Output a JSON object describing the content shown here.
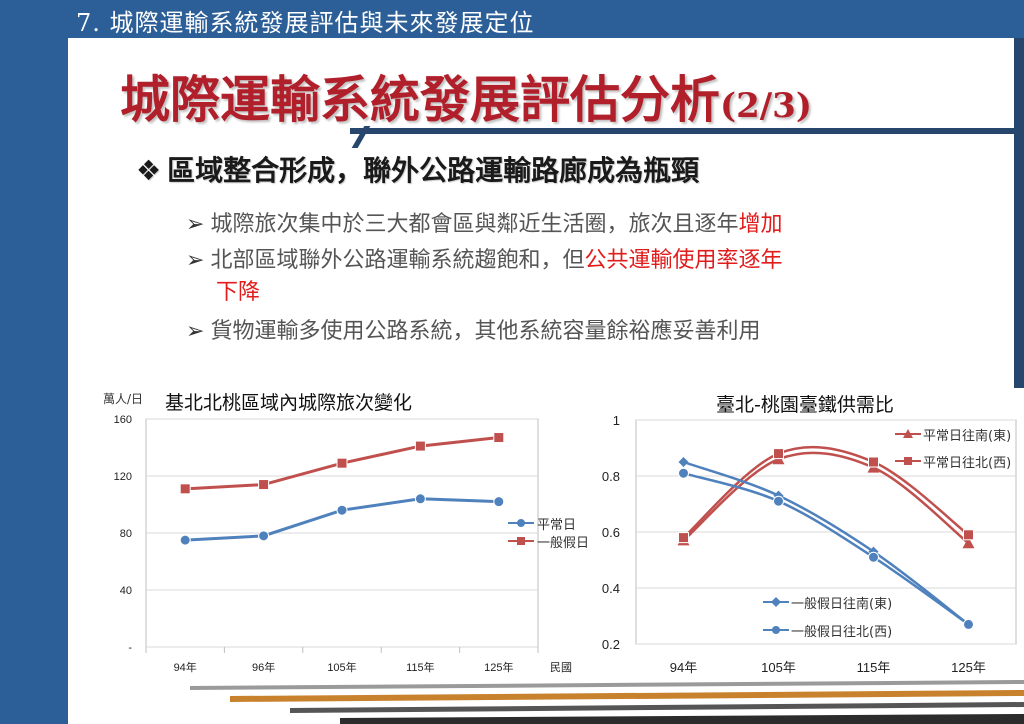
{
  "slide": {
    "section_title": "7. 城際運輸系統發展評估與未來發展定位",
    "title_main": "城際運輸系統發展評估分析",
    "title_sub": "(2/3)",
    "heading": {
      "mark": "❖",
      "text": "區域整合形成，聯外公路運輸路廊成為瓶頸"
    },
    "bullets": [
      {
        "arrow": "➢",
        "text": "城際旅次集中於三大都會區與鄰近生活圈，旅次且逐年",
        "highlight": "增加"
      },
      {
        "arrow": "➢",
        "text": "北部區域聯外公路運輸系統趨飽和，但",
        "highlight": "公共運輸使用率逐年",
        "highlight2": "下降"
      },
      {
        "arrow": "➢",
        "text": "貨物運輸多使用公路系統，其他系統容量餘裕應妥善利用"
      }
    ]
  },
  "colors": {
    "brand_blue": "#2c5f97",
    "title_red": "#b01f2a",
    "highlight_red": "#e21b1b",
    "series_blue": "#4f81bd",
    "series_red": "#c0504d"
  },
  "chart_data": [
    {
      "type": "line",
      "title": "基北北桃區域內城際旅次變化",
      "ylabel": "萬人/日",
      "xlabel": "民國",
      "categories": [
        "94年",
        "96年",
        "105年",
        "115年",
        "125年"
      ],
      "ytick_labels": [
        "-",
        "40",
        "80",
        "120",
        "160"
      ],
      "yticks": [
        0,
        40,
        80,
        120,
        160
      ],
      "ylim": [
        0,
        160
      ],
      "grid": true,
      "legend_position": "right",
      "series": [
        {
          "name": "平常日",
          "values": [
            75,
            78,
            96,
            104,
            102
          ],
          "color": "#4f81bd",
          "marker": "circle"
        },
        {
          "name": "一般假日",
          "values": [
            111,
            114,
            129,
            141,
            147
          ],
          "color": "#c0504d",
          "marker": "square"
        }
      ]
    },
    {
      "type": "line",
      "title": "臺北-桃園臺鐵供需比",
      "categories": [
        "94年",
        "105年",
        "115年",
        "125年"
      ],
      "ytick_labels": [
        "0.2",
        "0.4",
        "0.6",
        "0.8",
        "1"
      ],
      "yticks": [
        0.2,
        0.4,
        0.6,
        0.8,
        1.0
      ],
      "ylim": [
        0.2,
        1.0
      ],
      "grid": true,
      "smooth": true,
      "series": [
        {
          "name": "平常日往南(東)",
          "values": [
            0.57,
            0.86,
            0.83,
            0.56
          ],
          "color": "#c0504d",
          "marker": "triangle",
          "legend_position": "top-right"
        },
        {
          "name": "平常日往北(西)",
          "values": [
            0.58,
            0.88,
            0.85,
            0.59
          ],
          "color": "#c0504d",
          "marker": "square",
          "legend_position": "top-right"
        },
        {
          "name": "一般假日往南(東)",
          "values": [
            0.85,
            0.73,
            0.53,
            0.27
          ],
          "color": "#4f81bd",
          "marker": "diamond",
          "legend_position": "bottom-right"
        },
        {
          "name": "一般假日往北(西)",
          "values": [
            0.81,
            0.71,
            0.51,
            0.27
          ],
          "color": "#4f81bd",
          "marker": "circle",
          "legend_position": "bottom-right"
        }
      ]
    }
  ]
}
